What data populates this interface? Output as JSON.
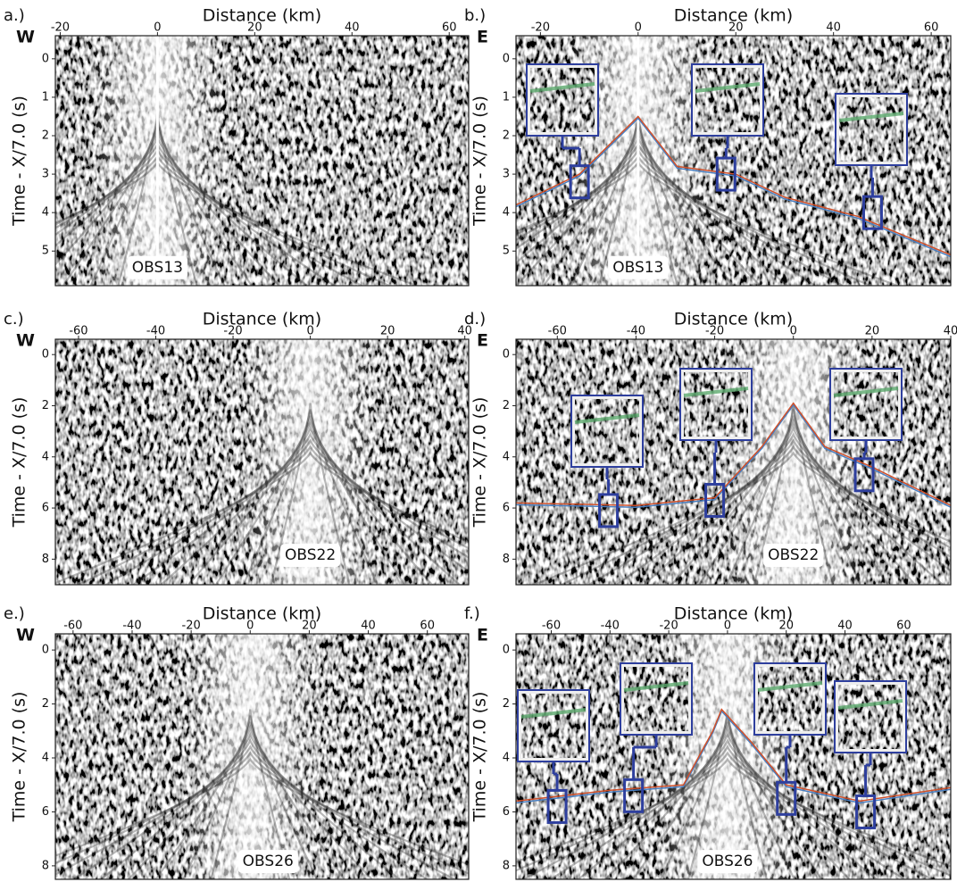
{
  "panels": [
    {
      "label": "a.)",
      "side": "W",
      "x_title": "Distance (km)",
      "y_title": "Time - X/7.0 (s)",
      "station": "OBS13",
      "xlim": [
        -21,
        64
      ],
      "xticks": [
        -20,
        0,
        20,
        40,
        60
      ],
      "ylim": [
        -0.6,
        5.9
      ],
      "yticks": [
        0,
        1,
        2,
        3,
        4,
        5
      ]
    },
    {
      "label": "b.)",
      "side": "E",
      "x_title": "Distance (km)",
      "y_title": "Time - X/7.0 (s)",
      "station": "OBS13",
      "xlim": [
        -25,
        64
      ],
      "xticks": [
        -20,
        0,
        20,
        40,
        60
      ],
      "ylim": [
        -0.6,
        5.9
      ],
      "yticks": [
        0,
        1,
        2,
        3,
        4,
        5
      ]
    },
    {
      "label": "c.)",
      "side": "W",
      "x_title": "Distance (km)",
      "y_title": "Time - X/7.0 (s)",
      "station": "OBS22",
      "xlim": [
        -66,
        41
      ],
      "xticks": [
        -60,
        -40,
        -20,
        0,
        20,
        40
      ],
      "ylim": [
        -0.6,
        9
      ],
      "yticks": [
        0,
        2,
        4,
        6,
        8
      ]
    },
    {
      "label": "d.)",
      "side": "E",
      "x_title": "Distance (km)",
      "y_title": "Time - X/7.0 (s)",
      "station": "OBS22",
      "xlim": [
        -70.5,
        40
      ],
      "xticks": [
        -60,
        -40,
        -20,
        0,
        20,
        40
      ],
      "ylim": [
        -0.6,
        9
      ],
      "yticks": [
        0,
        2,
        4,
        6,
        8
      ]
    },
    {
      "label": "e.)",
      "side": "W",
      "x_title": "Distance (km)",
      "y_title": "Time - X/7.0 (s)",
      "station": "OBS26",
      "xlim": [
        -66,
        74
      ],
      "xticks": [
        -60,
        -40,
        -20,
        0,
        20,
        40,
        60
      ],
      "ylim": [
        -0.6,
        8.5
      ],
      "yticks": [
        0,
        2,
        4,
        6,
        8
      ]
    },
    {
      "label": "f.)",
      "side": "E",
      "x_title": "Distance (km)",
      "y_title": "Time - X/7.0 (s)",
      "station": "OBS26",
      "xlim": [
        -72,
        76
      ],
      "xticks": [
        -60,
        -40,
        -20,
        0,
        20,
        40,
        60
      ],
      "ylim": [
        -0.6,
        8.5
      ],
      "yticks": [
        0,
        2,
        4,
        6,
        8
      ]
    }
  ]
}
